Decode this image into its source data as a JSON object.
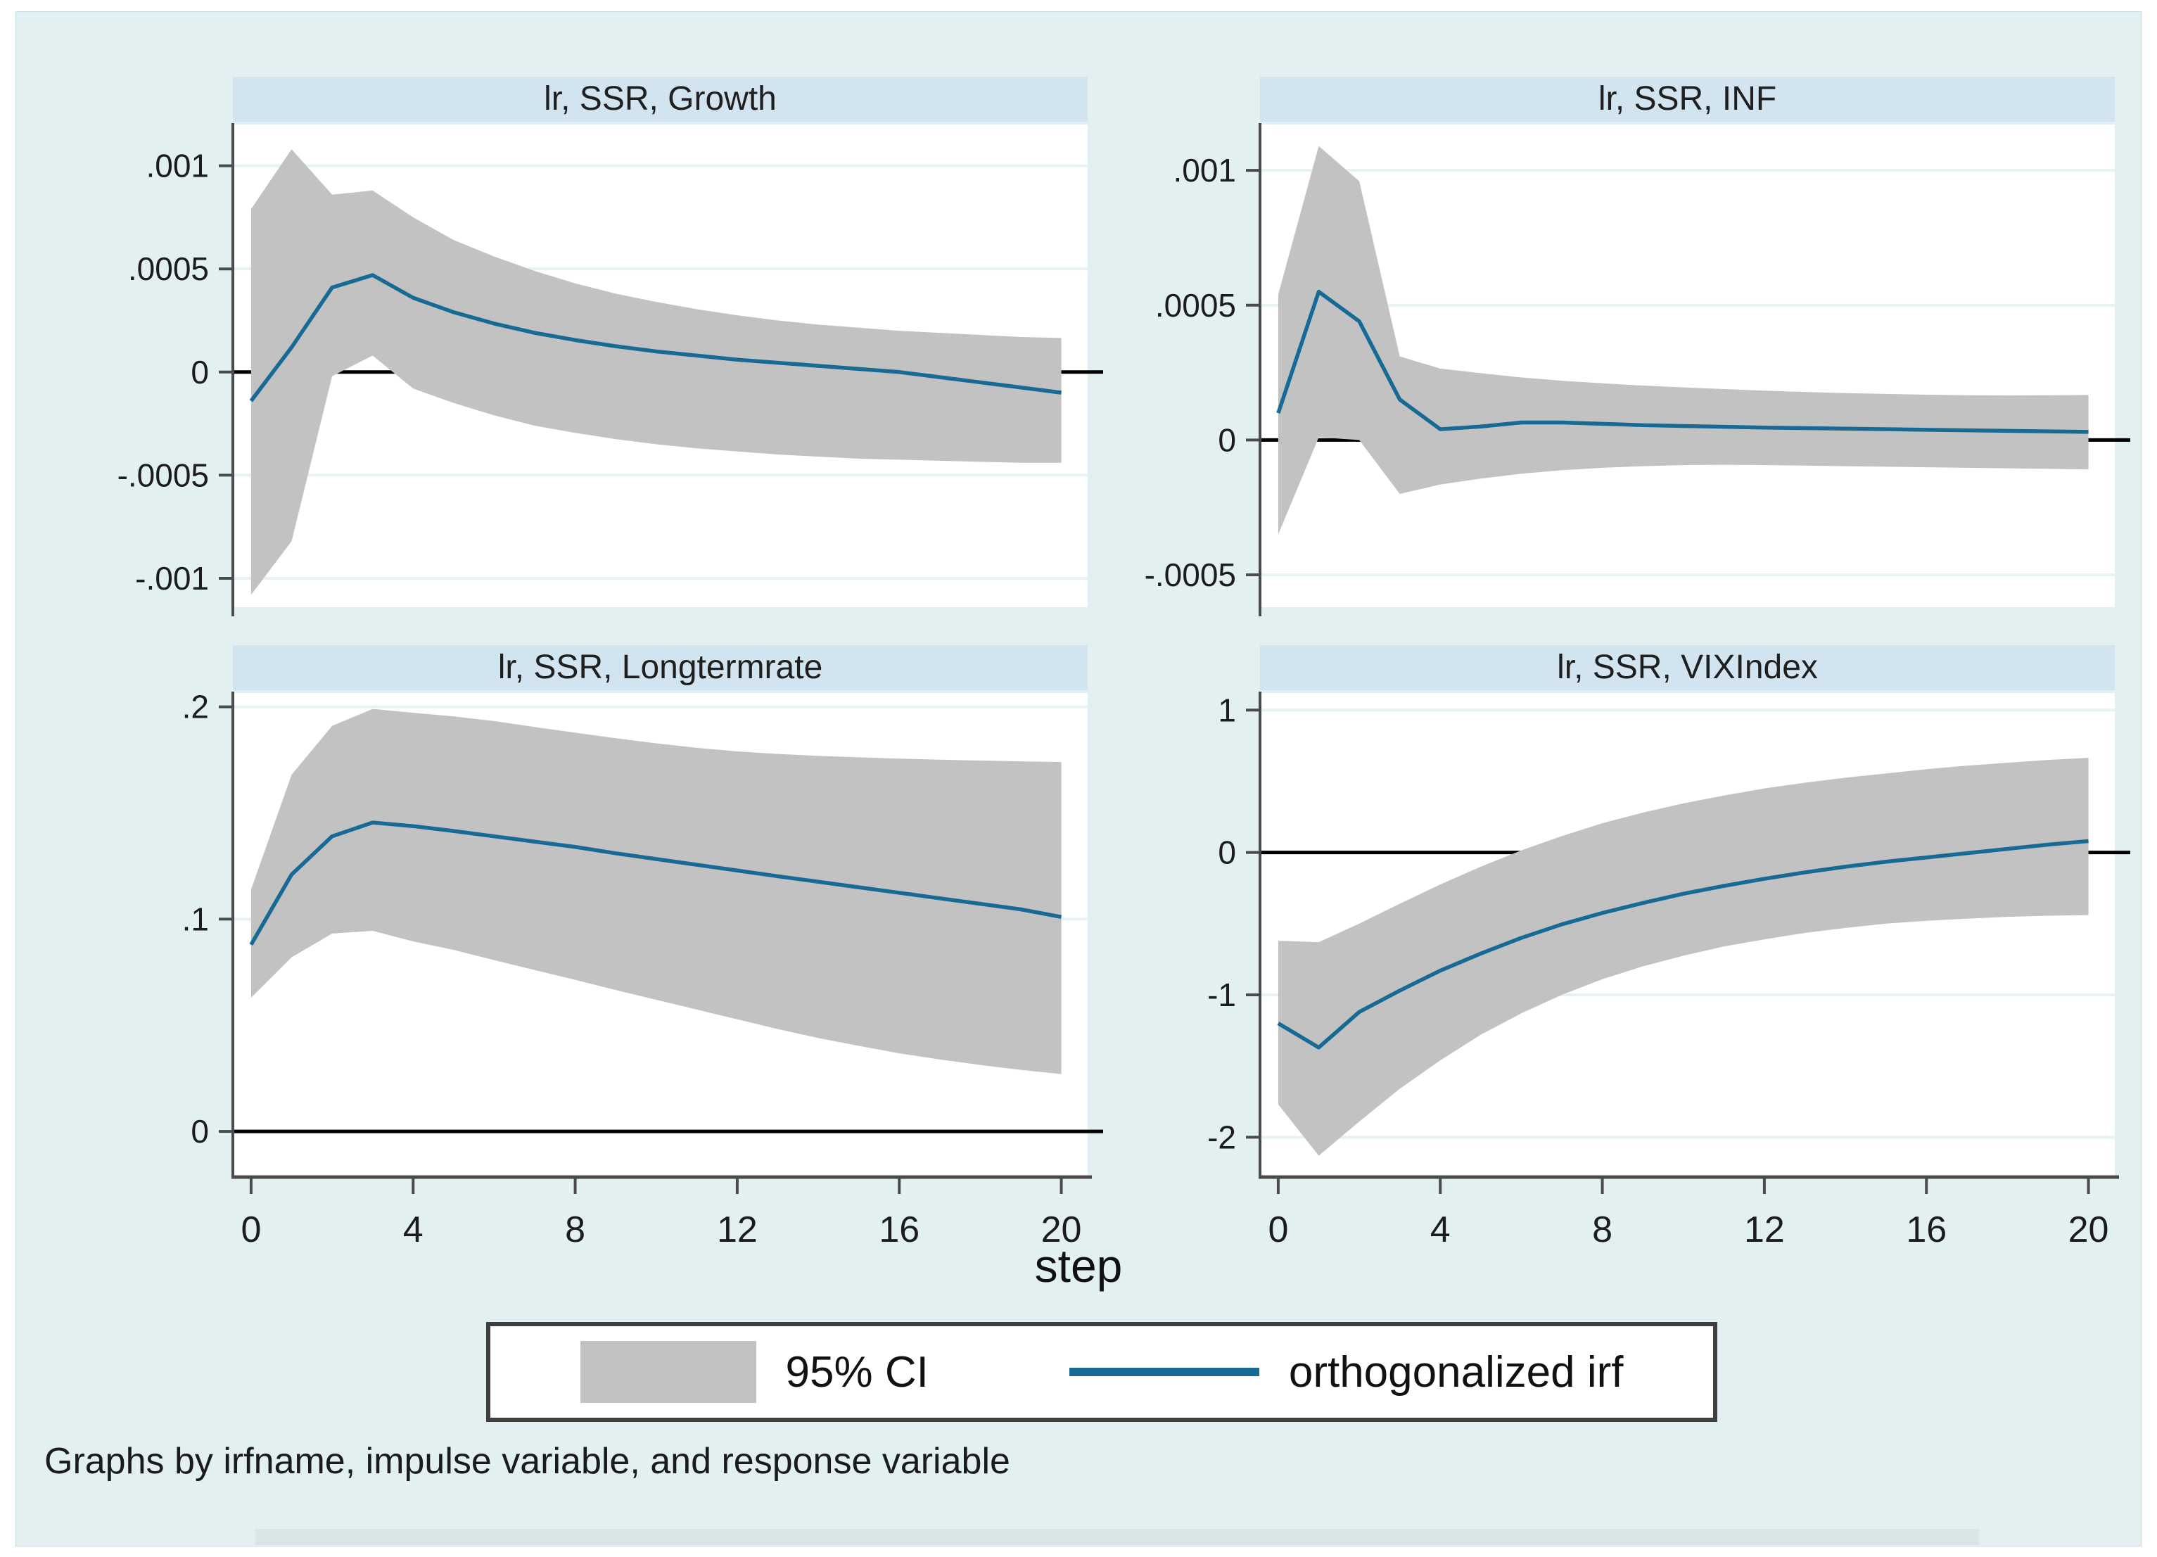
{
  "figure": {
    "xlabel": "step",
    "note": "Graphs by irfname, impulse variable, and response variable",
    "legend": {
      "ci_label": "95% CI",
      "irf_label": "orthogonalized irf"
    },
    "colors": {
      "background": "#e3f0f1",
      "title_strip": "#d2e4ef",
      "plot_bg": "#ffffff",
      "grid": "#e6f2f4",
      "band": "#c2c2c2",
      "line": "#176a94",
      "zero_line": "#000000",
      "axis": "#4a4a4a"
    }
  },
  "chart_data": [
    {
      "type": "area",
      "title": "lr, SSR, Growth",
      "x": [
        0,
        1,
        2,
        3,
        4,
        5,
        6,
        7,
        8,
        9,
        10,
        11,
        12,
        13,
        14,
        15,
        16,
        17,
        18,
        19,
        20
      ],
      "series": [
        {
          "name": "orthogonalized irf",
          "values": [
            -0.00014,
            0.00012,
            0.00041,
            0.00047,
            0.00036,
            0.00029,
            0.000235,
            0.00019,
            0.000155,
            0.000125,
            0.0001,
            8e-05,
            6e-05,
            4.5e-05,
            3e-05,
            1.5e-05,
            0.0,
            -2.5e-05,
            -5e-05,
            -7.5e-05,
            -0.0001
          ]
        },
        {
          "name": "95% CI upper",
          "values": [
            0.00079,
            0.00108,
            0.00086,
            0.00088,
            0.00075,
            0.00064,
            0.00056,
            0.00049,
            0.00043,
            0.00038,
            0.00034,
            0.000305,
            0.000275,
            0.00025,
            0.00023,
            0.000215,
            0.0002,
            0.00019,
            0.00018,
            0.00017,
            0.000165
          ]
        },
        {
          "name": "95% CI lower",
          "values": [
            -0.00108,
            -0.00082,
            -2e-05,
            8e-05,
            -8e-05,
            -0.00015,
            -0.00021,
            -0.00026,
            -0.000295,
            -0.000325,
            -0.00035,
            -0.00037,
            -0.000385,
            -0.0004,
            -0.00041,
            -0.00042,
            -0.000425,
            -0.00043,
            -0.000435,
            -0.00044,
            -0.00044
          ]
        }
      ],
      "ylim": [
        -0.00114,
        0.0012
      ],
      "yticks": [
        {
          "v": 0.001,
          "label": ".001"
        },
        {
          "v": 0.0005,
          "label": ".0005"
        },
        {
          "v": 0,
          "label": "0"
        },
        {
          "v": -0.0005,
          "label": "-.0005"
        },
        {
          "v": -0.001,
          "label": "-.001"
        }
      ],
      "xticks": [
        0,
        4,
        8,
        12,
        16,
        20
      ],
      "show_x_labels": false,
      "grid": true,
      "zero_line": true
    },
    {
      "type": "area",
      "title": "lr, SSR, INF",
      "x": [
        0,
        1,
        2,
        3,
        4,
        5,
        6,
        7,
        8,
        9,
        10,
        11,
        12,
        13,
        14,
        15,
        16,
        17,
        18,
        19,
        20
      ],
      "series": [
        {
          "name": "orthogonalized irf",
          "values": [
            0.0001,
            0.00055,
            0.00044,
            0.00015,
            4e-05,
            5e-05,
            6.5e-05,
            6.5e-05,
            6e-05,
            5.5e-05,
            5.2e-05,
            4.9e-05,
            4.6e-05,
            4.4e-05,
            4.2e-05,
            4e-05,
            3.8e-05,
            3.6e-05,
            3.4e-05,
            3.2e-05,
            3e-05
          ]
        },
        {
          "name": "95% CI upper",
          "values": [
            0.00054,
            0.00109,
            0.00096,
            0.00031,
            0.000265,
            0.000248,
            0.000232,
            0.00022,
            0.00021,
            0.000202,
            0.000195,
            0.000189,
            0.000183,
            0.000178,
            0.000174,
            0.000171,
            0.000168,
            0.000166,
            0.000165,
            0.000166,
            0.000167
          ]
        },
        {
          "name": "95% CI lower",
          "values": [
            -0.00035,
            1e-05,
            0.0,
            -0.0002,
            -0.000165,
            -0.000143,
            -0.000125,
            -0.000112,
            -0.000103,
            -9.7e-05,
            -9.3e-05,
            -9.2e-05,
            -9.3e-05,
            -9.5e-05,
            -9.7e-05,
            -9.9e-05,
            -0.000101,
            -0.000103,
            -0.000105,
            -0.000107,
            -0.000109
          ]
        }
      ],
      "ylim": [
        -0.00062,
        0.00117
      ],
      "yticks": [
        {
          "v": 0.001,
          "label": ".001"
        },
        {
          "v": 0.0005,
          "label": ".0005"
        },
        {
          "v": 0,
          "label": "0"
        },
        {
          "v": -0.0005,
          "label": "-.0005"
        }
      ],
      "xticks": [
        0,
        4,
        8,
        12,
        16,
        20
      ],
      "show_x_labels": false,
      "grid": true,
      "zero_line": true
    },
    {
      "type": "area",
      "title": "lr, SSR, Longtermrate",
      "x": [
        0,
        1,
        2,
        3,
        4,
        5,
        6,
        7,
        8,
        9,
        10,
        11,
        12,
        13,
        14,
        15,
        16,
        17,
        18,
        19,
        20
      ],
      "series": [
        {
          "name": "orthogonalized irf",
          "values": [
            0.088,
            0.121,
            0.139,
            0.1455,
            0.1438,
            0.1415,
            0.139,
            0.1365,
            0.134,
            0.131,
            0.1283,
            0.1256,
            0.1229,
            0.1202,
            0.1176,
            0.115,
            0.1124,
            0.1098,
            0.1072,
            0.1046,
            0.101
          ]
        },
        {
          "name": "95% CI upper",
          "values": [
            0.114,
            0.168,
            0.191,
            0.199,
            0.1972,
            0.1955,
            0.1933,
            0.1905,
            0.1878,
            0.1852,
            0.1828,
            0.1807,
            0.179,
            0.1778,
            0.1769,
            0.1762,
            0.1756,
            0.1751,
            0.1747,
            0.1743,
            0.174
          ]
        },
        {
          "name": "95% CI lower",
          "values": [
            0.063,
            0.082,
            0.0932,
            0.0945,
            0.0895,
            0.0855,
            0.0807,
            0.076,
            0.0714,
            0.0666,
            0.062,
            0.0574,
            0.0528,
            0.0482,
            0.044,
            0.0403,
            0.0368,
            0.0339,
            0.0313,
            0.029,
            0.027
          ]
        }
      ],
      "ylim": [
        -0.0215,
        0.2065
      ],
      "yticks": [
        {
          "v": 0.2,
          "label": ".2"
        },
        {
          "v": 0.1,
          "label": ".1"
        },
        {
          "v": 0,
          "label": "0"
        }
      ],
      "xticks": [
        0,
        4,
        8,
        12,
        16,
        20
      ],
      "show_x_labels": true,
      "grid": true,
      "zero_line": true
    },
    {
      "type": "area",
      "title": "lr, SSR, VIXIndex",
      "x": [
        0,
        1,
        2,
        3,
        4,
        5,
        6,
        7,
        8,
        9,
        10,
        11,
        12,
        13,
        14,
        15,
        16,
        17,
        18,
        19,
        20
      ],
      "series": [
        {
          "name": "orthogonalized irf",
          "values": [
            -1.2,
            -1.37,
            -1.12,
            -0.97,
            -0.83,
            -0.71,
            -0.6,
            -0.505,
            -0.425,
            -0.355,
            -0.29,
            -0.235,
            -0.185,
            -0.14,
            -0.1,
            -0.065,
            -0.035,
            -0.005,
            0.025,
            0.055,
            0.08
          ]
        },
        {
          "name": "95% CI upper",
          "values": [
            -0.62,
            -0.63,
            -0.5,
            -0.36,
            -0.225,
            -0.1,
            0.015,
            0.115,
            0.205,
            0.28,
            0.345,
            0.4,
            0.45,
            0.49,
            0.525,
            0.555,
            0.585,
            0.61,
            0.63,
            0.65,
            0.665
          ]
        },
        {
          "name": "95% CI lower",
          "values": [
            -1.77,
            -2.13,
            -1.89,
            -1.66,
            -1.46,
            -1.28,
            -1.13,
            -1.0,
            -0.89,
            -0.8,
            -0.725,
            -0.66,
            -0.61,
            -0.565,
            -0.53,
            -0.5,
            -0.48,
            -0.465,
            -0.452,
            -0.444,
            -0.44
          ]
        }
      ],
      "ylim": [
        -2.28,
        1.12
      ],
      "yticks": [
        {
          "v": 1,
          "label": "1"
        },
        {
          "v": 0,
          "label": "0"
        },
        {
          "v": -1,
          "label": "-1"
        },
        {
          "v": -2,
          "label": "-2"
        }
      ],
      "xticks": [
        0,
        4,
        8,
        12,
        16,
        20
      ],
      "show_x_labels": true,
      "grid": true,
      "zero_line": true
    }
  ]
}
